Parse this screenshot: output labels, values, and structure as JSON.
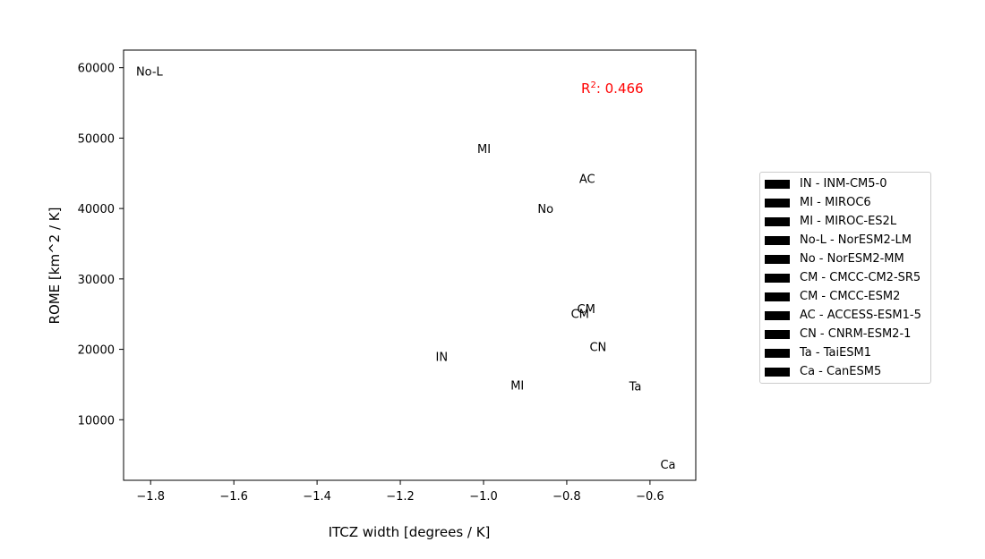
{
  "chart_data": {
    "type": "scatter",
    "xlabel": "ITCZ width [degrees / K]",
    "ylabel": "ROME [km^2 / K]",
    "xlim": [
      -1.865,
      -0.49
    ],
    "ylim": [
      1400,
      62500
    ],
    "x_ticks": [
      -1.8,
      -1.6,
      -1.4,
      -1.2,
      -1.0,
      -0.8,
      -0.6
    ],
    "x_tick_labels": [
      "−1.8",
      "−1.6",
      "−1.4",
      "−1.2",
      "−1.0",
      "−0.8",
      "−0.6"
    ],
    "y_ticks": [
      10000,
      20000,
      30000,
      40000,
      50000,
      60000
    ],
    "y_tick_labels": [
      "10000",
      "20000",
      "30000",
      "40000",
      "50000",
      "60000"
    ],
    "annotation": {
      "base": "R",
      "sup": "2",
      "rest": ": 0.466",
      "color": "#ff0000"
    },
    "points": [
      {
        "label": "No-L",
        "x": -1.835,
        "y": 59500
      },
      {
        "label": "MI",
        "x": -1.015,
        "y": 48500
      },
      {
        "label": "AC",
        "x": -0.77,
        "y": 44300
      },
      {
        "label": "No",
        "x": -0.87,
        "y": 40000
      },
      {
        "label": "CM",
        "x": -0.775,
        "y": 25800
      },
      {
        "label": "CM",
        "x": -0.79,
        "y": 25100
      },
      {
        "label": "CN",
        "x": -0.745,
        "y": 20400
      },
      {
        "label": "IN",
        "x": -1.115,
        "y": 19000
      },
      {
        "label": "MI",
        "x": -0.935,
        "y": 14900
      },
      {
        "label": "Ta",
        "x": -0.65,
        "y": 14800
      },
      {
        "label": "Ca",
        "x": -0.575,
        "y": 3700
      }
    ],
    "legend": {
      "placement": "right",
      "entries": [
        "IN - INM-CM5-0",
        "MI - MIROC6",
        "MI - MIROC-ES2L",
        "No-L - NorESM2-LM",
        "No - NorESM2-MM",
        "CM - CMCC-CM2-SR5",
        "CM - CMCC-ESM2",
        "AC - ACCESS-ESM1-5",
        "CN - CNRM-ESM2-1",
        "Ta - TaiESM1",
        "Ca - CanESM5"
      ],
      "swatch_color": "#000000"
    },
    "grid": false
  }
}
